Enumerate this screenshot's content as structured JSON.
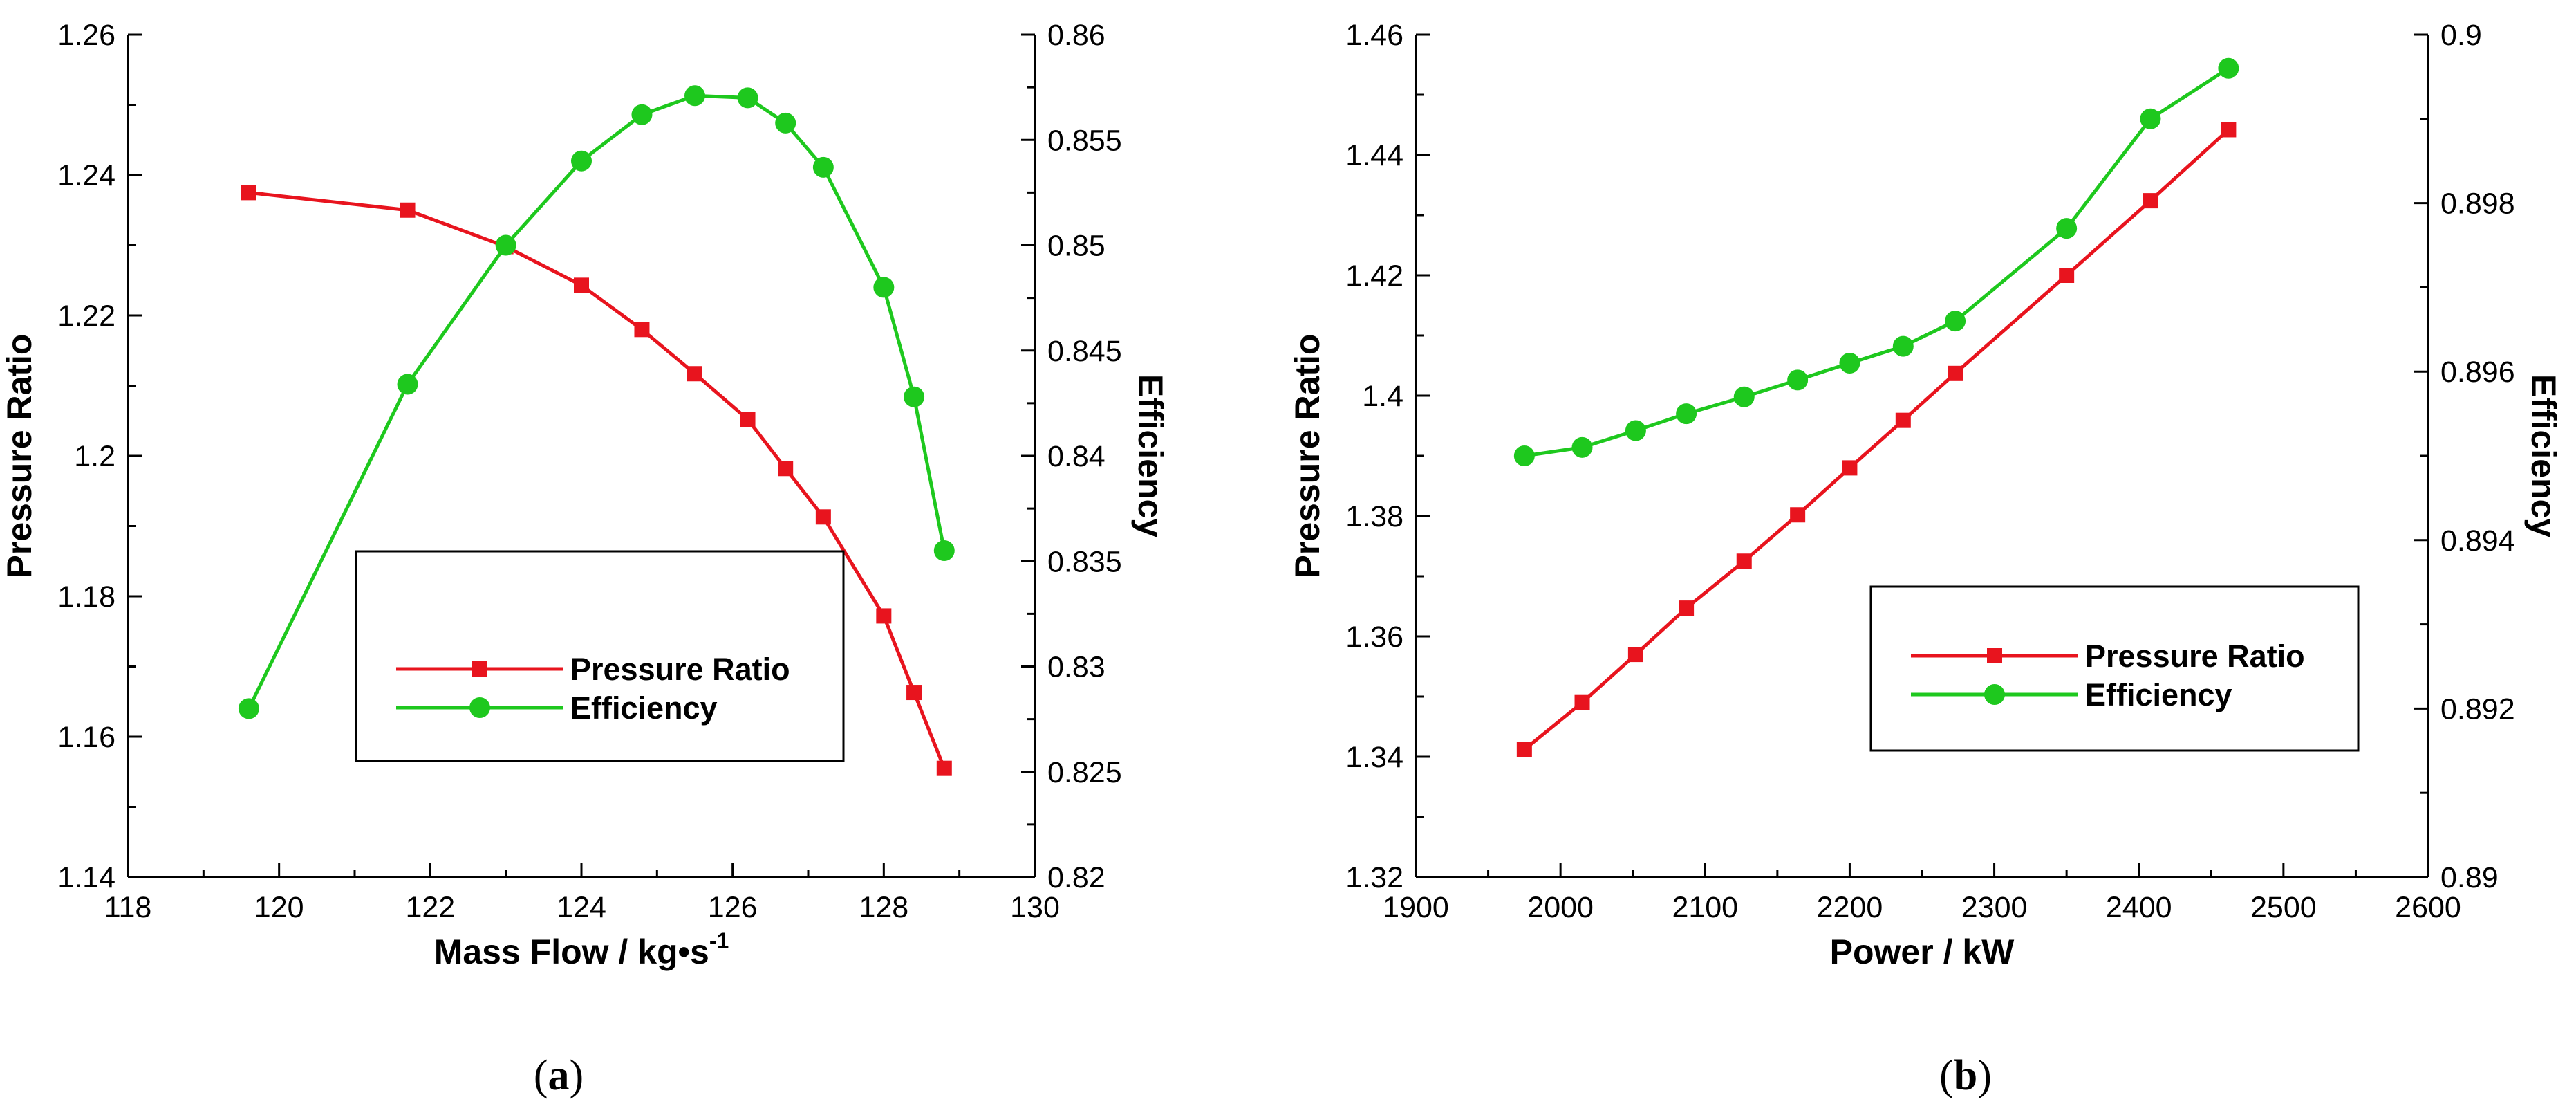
{
  "chart_data": [
    {
      "type": "line",
      "caption_open": "(",
      "caption_letter": "a",
      "caption_close": ")",
      "xlabel_main": "Mass Flow / kg•s",
      "xlabel_sup": "-1",
      "ylabel": "Pressure Ratio",
      "y2label": "Efficiency",
      "xlim": [
        118,
        130
      ],
      "ylim": [
        1.14,
        1.26
      ],
      "y2lim": [
        0.82,
        0.86
      ],
      "x_ticks": [
        "118",
        "120",
        "122",
        "124",
        "126",
        "128",
        "130"
      ],
      "y_ticks": [
        "1.14",
        "1.16",
        "1.18",
        "1.2",
        "1.22",
        "1.24",
        "1.26"
      ],
      "y2_ticks": [
        "0.82",
        "0.825",
        "0.83",
        "0.835",
        "0.84",
        "0.845",
        "0.85",
        "0.855",
        "0.86"
      ],
      "series": [
        {
          "name": "Pressure Ratio",
          "axis": "left",
          "color": "#e8141e",
          "marker": "square",
          "x": [
            119.6,
            121.7,
            123.0,
            124.0,
            124.8,
            125.5,
            126.2,
            126.7,
            127.2,
            128.0,
            128.4,
            128.8
          ],
          "values": [
            1.2375,
            1.235,
            1.2298,
            1.2243,
            1.218,
            1.2117,
            1.2052,
            1.1982,
            1.1913,
            1.1772,
            1.1663,
            1.1555
          ]
        },
        {
          "name": "Efficiency",
          "axis": "right",
          "color": "#1ec81e",
          "marker": "circle",
          "x": [
            119.6,
            121.7,
            123.0,
            124.0,
            124.8,
            125.5,
            126.2,
            126.7,
            127.2,
            128.0,
            128.4,
            128.8
          ],
          "values": [
            0.828,
            0.8434,
            0.85,
            0.854,
            0.8562,
            0.8571,
            0.857,
            0.8558,
            0.8537,
            0.848,
            0.8428,
            0.8355
          ]
        }
      ]
    },
    {
      "type": "line",
      "caption_open": "(",
      "caption_letter": "b",
      "caption_close": ")",
      "xlabel_main": "Power / kW",
      "xlabel_sup": "",
      "ylabel": "Pressure Ratio",
      "y2label": "Efficiency",
      "xlim": [
        1900,
        2600
      ],
      "ylim": [
        1.32,
        1.46
      ],
      "y2lim": [
        0.89,
        0.9
      ],
      "x_ticks": [
        "1900",
        "2000",
        "2100",
        "2200",
        "2300",
        "2400",
        "2500",
        "2600"
      ],
      "y_ticks": [
        "1.32",
        "1.34",
        "1.36",
        "1.38",
        "1.4",
        "1.42",
        "1.44",
        "1.46"
      ],
      "y2_ticks": [
        "0.89",
        "0.892",
        "0.894",
        "0.896",
        "0.898",
        "0.9"
      ],
      "series": [
        {
          "name": "Pressure Ratio",
          "axis": "left",
          "color": "#e8141e",
          "marker": "square",
          "x": [
            1975,
            2015,
            2052,
            2087,
            2127,
            2164,
            2200,
            2237,
            2273,
            2350,
            2408,
            2462
          ],
          "values": [
            1.3412,
            1.349,
            1.357,
            1.3647,
            1.3725,
            1.3802,
            1.388,
            1.3959,
            1.4037,
            1.42,
            1.4324,
            1.4442
          ]
        },
        {
          "name": "Efficiency",
          "axis": "right",
          "color": "#1ec81e",
          "marker": "circle",
          "x": [
            1975,
            2015,
            2052,
            2087,
            2127,
            2164,
            2200,
            2237,
            2273,
            2350,
            2408,
            2462
          ],
          "values": [
            0.895,
            0.8951,
            0.8953,
            0.8955,
            0.8957,
            0.8959,
            0.8961,
            0.8963,
            0.8966,
            0.8977,
            0.899,
            0.8996
          ]
        }
      ]
    }
  ]
}
